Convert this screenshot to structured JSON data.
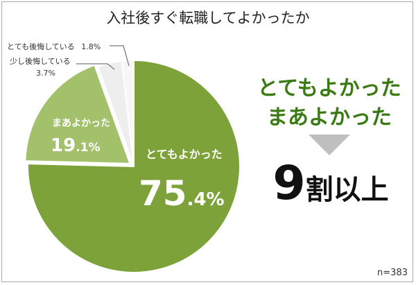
{
  "header": {
    "title": "入社後すぐ転職してよかったか"
  },
  "chart_data": {
    "type": "pie",
    "title": "入社後すぐ転職してよかったか",
    "note": "n=383",
    "slices": [
      {
        "label": "とてもよかった",
        "value": 75.4,
        "value_int": "75",
        "value_dec": ".4%",
        "color": "#7ea23a"
      },
      {
        "label": "まあよかった",
        "value": 19.1,
        "value_int": "19",
        "value_dec": ".1%",
        "color": "#a3c06a"
      },
      {
        "label": "少し後悔している",
        "value": 3.7,
        "value_text": "3.7%",
        "color": "#eeeeee"
      },
      {
        "label": "とても後悔している",
        "value": 1.8,
        "value_text": "1.8%",
        "color": "#f7f7f7"
      }
    ]
  },
  "side": {
    "headline_line1": "とてもよかった",
    "headline_line2": "まあよかった",
    "result_number": "9",
    "result_text": "割以上"
  }
}
